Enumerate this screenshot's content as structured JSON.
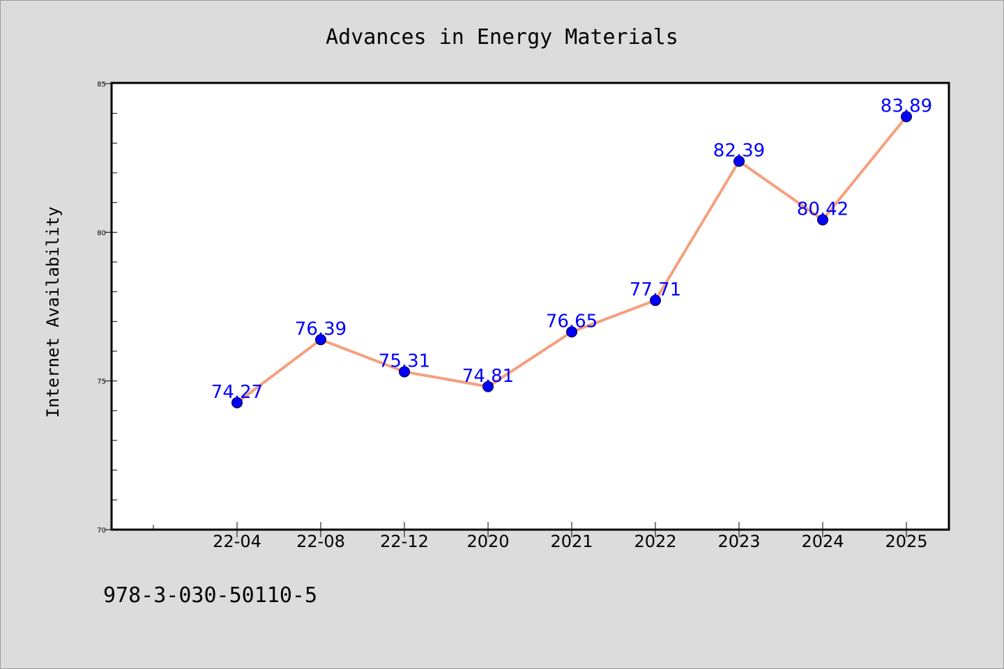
{
  "chart_data": {
    "type": "line",
    "title": "Advances in Energy Materials",
    "xlabel": "",
    "ylabel": "Internet Availability",
    "categories": [
      "22-04",
      "22-08",
      "22-12",
      "2020",
      "2021",
      "2022",
      "2023",
      "2024",
      "2025"
    ],
    "series": [
      {
        "values": [
          74.27,
          76.39,
          75.31,
          74.81,
          76.65,
          77.71,
          82.39,
          80.42,
          83.89
        ]
      }
    ],
    "data_labels": [
      "74.27",
      "76.39",
      "75.31",
      "74.81",
      "76.65",
      "77.71",
      "82.39",
      "80.42",
      "83.89"
    ],
    "ylim": [
      70,
      85
    ],
    "yticks": [
      "70",
      "75",
      "80",
      "85"
    ],
    "grid": false,
    "legend": "none",
    "colors": {
      "line": "#f4a07e",
      "marker": "#0000ff",
      "label": "#0000ff",
      "background": "#dcdcdc",
      "plot_background": "#ffffff"
    }
  },
  "footer_text": "978-3-030-50110-5"
}
